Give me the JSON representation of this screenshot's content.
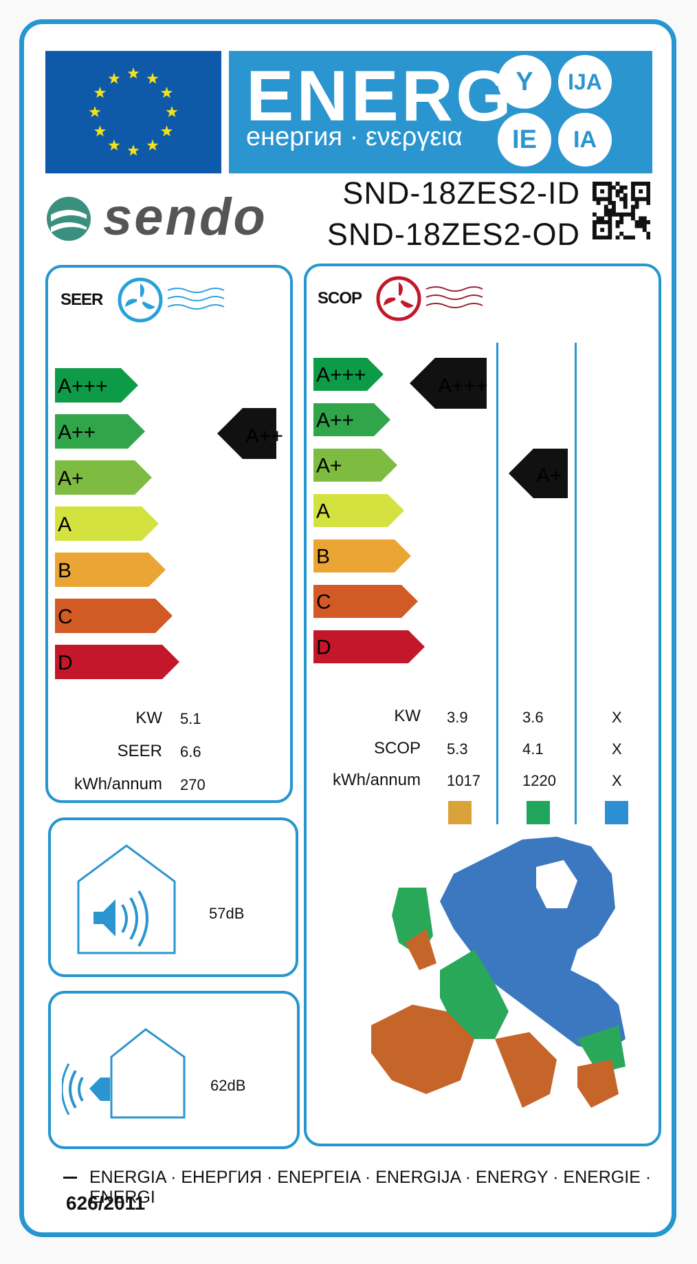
{
  "header": {
    "title": "ENERG",
    "subtitle": "енергия · ενεργεια",
    "suffixes": [
      "Y",
      "IJA",
      "IE",
      "IA"
    ]
  },
  "brand": {
    "name": "sendo"
  },
  "models": {
    "indoor": "SND-18ZES2-ID",
    "outdoor": "SND-18ZES2-OD"
  },
  "cooling": {
    "label": "SEER",
    "scale": [
      "A+++",
      "A++",
      "A+",
      "A",
      "B",
      "C",
      "D"
    ],
    "rating": "A++",
    "rows": [
      {
        "label": "KW",
        "value": "5.1"
      },
      {
        "label": "SEER",
        "value": "6.6"
      },
      {
        "label": "kWh/annum",
        "value": "270"
      }
    ]
  },
  "heating": {
    "label": "SCOP",
    "scale": [
      "A+++",
      "A++",
      "A+",
      "A",
      "B",
      "C",
      "D"
    ],
    "ratings": {
      "warmer": "A+++",
      "average": "A+"
    },
    "row_labels": [
      "KW",
      "SCOP",
      "kWh/annum"
    ],
    "columns": [
      {
        "values": [
          "3.9",
          "5.3",
          "1017"
        ],
        "color": "#d9a33a"
      },
      {
        "values": [
          "3.6",
          "4.1",
          "1220"
        ],
        "color": "#21a55a"
      },
      {
        "values": [
          "X",
          "X",
          "X"
        ],
        "color": "#2d8fd1"
      }
    ]
  },
  "noise": {
    "indoor": "57dB",
    "outdoor": "62dB"
  },
  "colors": {
    "frame": "#2596cf",
    "band": "#2a95cf",
    "eu_flag": "#0f5aa8",
    "star": "#f5e11a",
    "scale": [
      "#0e9b48",
      "#30a54a",
      "#7dbb41",
      "#d3e23e",
      "#eaa535",
      "#d15a25",
      "#c3182a"
    ],
    "map_warm": "#c6652a",
    "map_average": "#2aa85a",
    "map_cold": "#3c78bf"
  },
  "footer": {
    "languages": "ENERGIA · ЕНЕРГИЯ · ΕΝΕΡΓΕΙΑ · ENERGIJA · ENERGY · ENERGIE · ENERGI",
    "regulation": "626/2011"
  }
}
